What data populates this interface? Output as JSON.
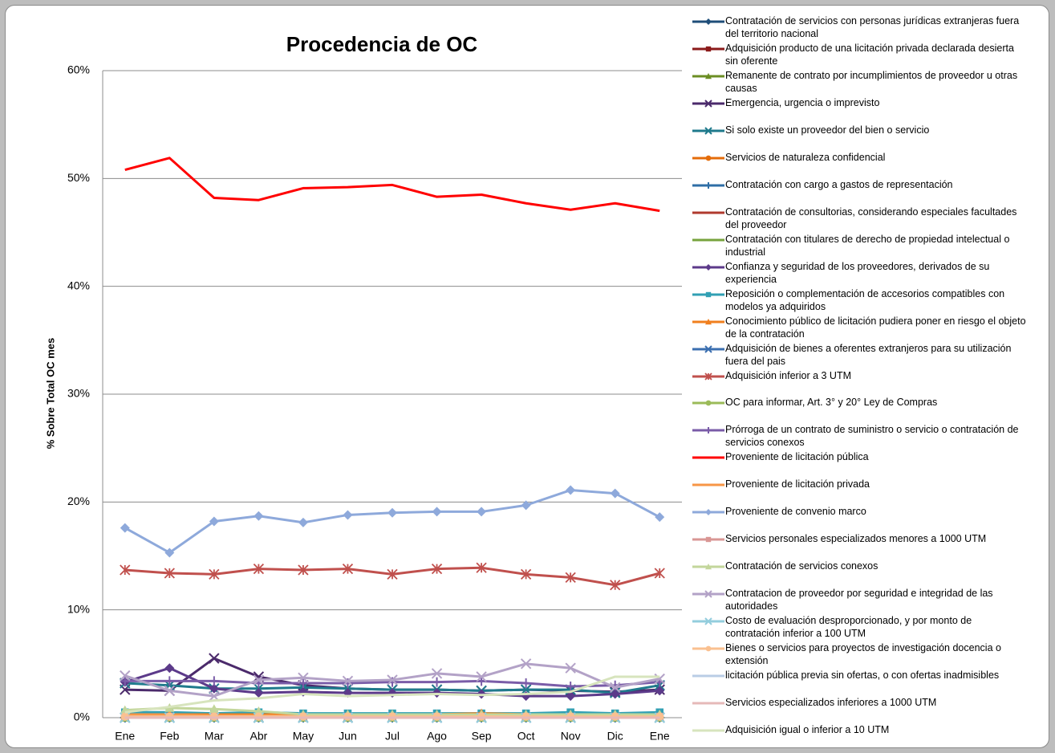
{
  "chart_data": {
    "type": "line",
    "title": "Procedencia de OC",
    "y_label": "% Sobre  Total OC mes",
    "categories": [
      "Ene",
      "Feb",
      "Mar",
      "Abr",
      "May",
      "Jun",
      "Jul",
      "Ago",
      "Sep",
      "Oct",
      "Nov",
      "Dic",
      "Ene"
    ],
    "ylim": [
      0,
      60
    ],
    "yticks": [
      {
        "value": 0,
        "label": "0%"
      },
      {
        "value": 10,
        "label": "10%"
      },
      {
        "value": 20,
        "label": "20%"
      },
      {
        "value": 30,
        "label": "30%"
      },
      {
        "value": 40,
        "label": "40%"
      },
      {
        "value": 50,
        "label": "50%"
      },
      {
        "value": 60,
        "label": "60%"
      }
    ],
    "grid": true,
    "series": [
      {
        "name": "Contratación de servicios con personas jurídicas extranjeras fuera del territorio nacional",
        "color": "#1f4e79",
        "marker": "diamond",
        "values": [
          0,
          0,
          0,
          0,
          0,
          0,
          0,
          0,
          0,
          0,
          0,
          0,
          0
        ]
      },
      {
        "name": "Adquisición producto de una licitación privada declarada desierta sin oferente",
        "color": "#8b1a1a",
        "marker": "square",
        "values": [
          0.1,
          0.1,
          0.1,
          0.1,
          0.1,
          0.1,
          0.1,
          0.1,
          0.1,
          0.1,
          0.1,
          0.1,
          0.1
        ]
      },
      {
        "name": "Remanente de contrato por incumplimientos de proveedor u otras causas",
        "color": "#6b8e23",
        "marker": "triangle",
        "values": [
          0,
          0,
          0,
          0,
          0,
          0,
          0,
          0,
          0,
          0,
          0,
          0,
          0
        ]
      },
      {
        "name": "Emergencia, urgencia o imprevisto",
        "color": "#4b2a6b",
        "marker": "x",
        "values": [
          2.6,
          2.5,
          5.5,
          3.8,
          3,
          2.7,
          2.6,
          2.6,
          2.5,
          2.6,
          2.5,
          2.4,
          2.6
        ]
      },
      {
        "name": "Si solo existe un proveedor del bien o servicio",
        "color": "#1f7a8c",
        "marker": "x",
        "values": [
          3.2,
          3,
          2.7,
          2.7,
          2.8,
          2.7,
          2.6,
          2.6,
          2.5,
          2.6,
          2.6,
          2.3,
          3
        ]
      },
      {
        "name": "Servicios de naturaleza confidencial",
        "color": "#e46c0a",
        "marker": "circle",
        "values": [
          0.1,
          0.1,
          0.1,
          0.1,
          0.1,
          0.1,
          0.1,
          0.1,
          0.1,
          0.1,
          0.1,
          0.1,
          0.1
        ]
      },
      {
        "name": "Contratación con cargo a gastos de representación",
        "color": "#2e6ea6",
        "marker": "plus",
        "values": [
          0,
          0,
          0,
          0,
          0,
          0,
          0,
          0,
          0,
          0,
          0,
          0,
          0
        ]
      },
      {
        "name": "Contratación de consultorias, considerando especiales facultades del proveedor",
        "color": "#b03a2e",
        "marker": "none",
        "values": [
          0.1,
          0.1,
          0.1,
          0.1,
          0.1,
          0.1,
          0.1,
          0.1,
          0.1,
          0.1,
          0.1,
          0.1,
          0.1
        ]
      },
      {
        "name": "Contratación con titulares de derecho de propiedad intelectual o industrial",
        "color": "#77a33d",
        "marker": "none",
        "values": [
          0,
          0,
          0,
          0,
          0,
          0,
          0,
          0,
          0,
          0,
          0,
          0,
          0
        ]
      },
      {
        "name": "Confianza y seguridad de los proveedores, derivados de su experiencia",
        "color": "#5c3a8a",
        "marker": "diamond",
        "values": [
          3.3,
          4.6,
          2.7,
          2.3,
          2.4,
          2.3,
          2.3,
          2.3,
          2.2,
          2,
          2,
          2.2,
          2.5
        ]
      },
      {
        "name": "Reposición o complementación de accesorios compatibles con modelos ya adquiridos",
        "color": "#31a0b4",
        "marker": "square",
        "values": [
          0.5,
          0.5,
          0.4,
          0.5,
          0.4,
          0.4,
          0.4,
          0.4,
          0.4,
          0.4,
          0.5,
          0.4,
          0.5
        ]
      },
      {
        "name": "Conocimiento público de licitación pudiera poner en riesgo el objeto de la contratación",
        "color": "#f07f1e",
        "marker": "triangle",
        "values": [
          0.3,
          0.3,
          0.3,
          0.3,
          0.3,
          0.3,
          0.3,
          0.3,
          0.4,
          0.3,
          0.3,
          0.3,
          0.3
        ]
      },
      {
        "name": "Adquisición de bienes a oferentes extranjeros para su utilización fuera del pais",
        "color": "#3b6fb0",
        "marker": "x",
        "values": [
          0,
          0,
          0,
          0,
          0,
          0,
          0,
          0,
          0,
          0,
          0,
          0,
          0
        ]
      },
      {
        "name": "Adquisición inferior a 3 UTM",
        "color": "#c0504d",
        "marker": "asterisk",
        "values": [
          13.7,
          13.4,
          13.3,
          13.8,
          13.7,
          13.8,
          13.3,
          13.8,
          13.9,
          13.3,
          13,
          12.3,
          13.4
        ]
      },
      {
        "name": "OC para informar, Art. 3° y 20° Ley de Compras",
        "color": "#9bbb59",
        "marker": "circle",
        "values": [
          0,
          0,
          0,
          0,
          0,
          0,
          0,
          0,
          0,
          0,
          0,
          0,
          0
        ]
      },
      {
        "name": "Prórroga de un contrato de suministro o servicio o contratación de servicios conexos",
        "color": "#7a5ca8",
        "marker": "plus",
        "values": [
          3.4,
          3.4,
          3.4,
          3.2,
          3.2,
          3.2,
          3.3,
          3.3,
          3.4,
          3.2,
          2.9,
          3,
          3.3
        ]
      },
      {
        "name": "Proveniente de licitación pública",
        "color": "#ff0000",
        "marker": "none",
        "values": [
          50.8,
          51.9,
          48.2,
          48,
          49.1,
          49.2,
          49.4,
          48.3,
          48.5,
          47.7,
          47.1,
          47.7,
          47
        ]
      },
      {
        "name": "Proveniente de licitación privada",
        "color": "#f79646",
        "marker": "none",
        "values": [
          0.3,
          0.3,
          0.2,
          0.2,
          0.2,
          0.2,
          0.2,
          0.2,
          0.2,
          0.2,
          0.2,
          0.2,
          0.2
        ]
      },
      {
        "name": "Proveniente de convenio marco",
        "color": "#8ea9db",
        "marker": "diamond",
        "values": [
          17.6,
          15.3,
          18.2,
          18.7,
          18.1,
          18.8,
          19,
          19.1,
          19.1,
          19.7,
          21.1,
          20.8,
          18.6
        ]
      },
      {
        "name": "Servicios personales especializados menores a 1000 UTM",
        "color": "#d99694",
        "marker": "square",
        "values": [
          0.1,
          0.1,
          0.1,
          0.1,
          0.1,
          0.1,
          0.1,
          0.1,
          0.1,
          0.1,
          0.1,
          0.1,
          0.1
        ]
      },
      {
        "name": "Contratación de servicios conexos",
        "color": "#c3d69b",
        "marker": "triangle",
        "values": [
          0.7,
          0.9,
          0.8,
          0.6,
          0.3,
          0.3,
          0.3,
          0.3,
          0.3,
          0.3,
          0.3,
          0.3,
          0.3
        ]
      },
      {
        "name": "Contratacion de proveedor por seguridad e integridad de las autoridades",
        "color": "#b3a2c7",
        "marker": "x",
        "values": [
          3.9,
          2.5,
          2,
          3.5,
          3.7,
          3.4,
          3.5,
          4.1,
          3.8,
          5,
          4.6,
          2.8,
          3.6
        ]
      },
      {
        "name": "Costo de evaluación desproporcionado, y por monto de contratación inferior a 100 UTM",
        "color": "#93cddd",
        "marker": "x",
        "values": [
          0,
          0,
          0,
          0,
          0,
          0,
          0,
          0,
          0,
          0,
          0,
          0,
          0
        ]
      },
      {
        "name": "Bienes o servicios para proyectos de investigación docencia o extensión",
        "color": "#fac090",
        "marker": "circle",
        "values": [
          0.1,
          0.1,
          0.1,
          0.1,
          0.1,
          0.1,
          0.1,
          0.1,
          0.1,
          0.1,
          0.1,
          0.1,
          0.1
        ]
      },
      {
        "name": "licitación pública previa sin ofertas, o con ofertas inadmisibles",
        "color": "#b9cde5",
        "marker": "none",
        "values": [
          0,
          0,
          0,
          0,
          0,
          0,
          0,
          0,
          0,
          0,
          0,
          0,
          0
        ]
      },
      {
        "name": "Servicios especializados inferiores a 1000 UTM",
        "color": "#e6b9b8",
        "marker": "none",
        "values": [
          0,
          0,
          0,
          0,
          0,
          0,
          0,
          0,
          0,
          0,
          0,
          0,
          0
        ]
      },
      {
        "name": "Adquisición igual o inferior a 10 UTM",
        "color": "#d7e4bd",
        "marker": "none",
        "values": [
          0.5,
          1,
          1.6,
          1.8,
          2.2,
          2,
          2.1,
          2.2,
          2.1,
          2.2,
          2.4,
          3.8,
          3.8
        ]
      }
    ]
  }
}
